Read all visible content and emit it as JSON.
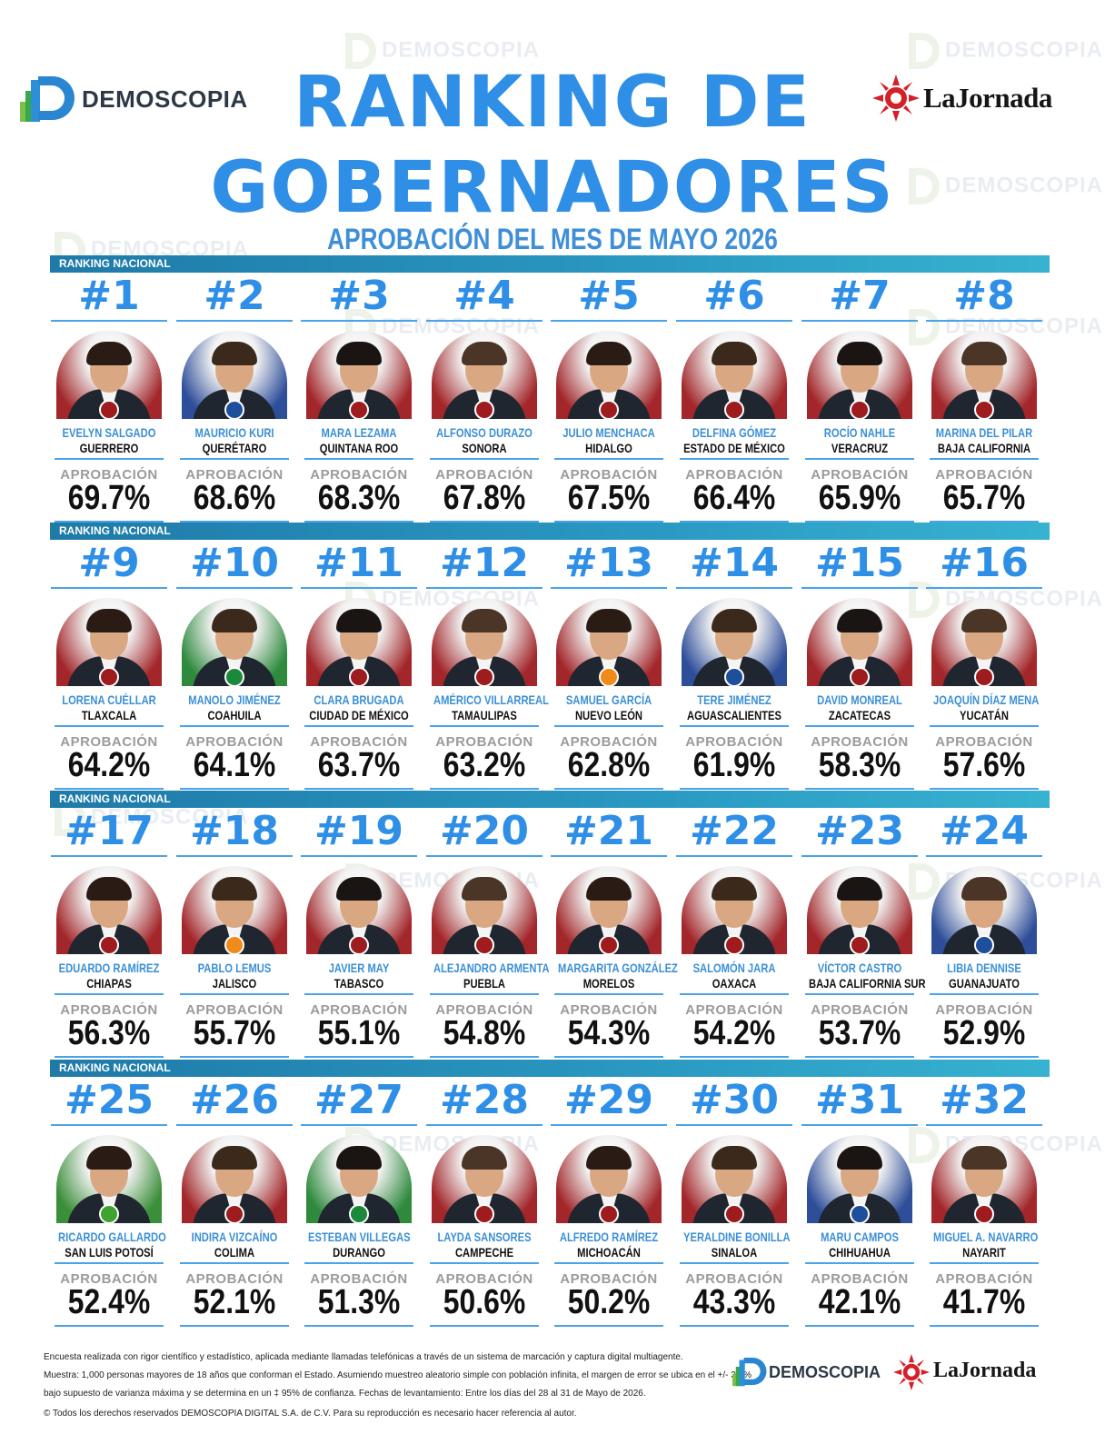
{
  "header": {
    "title_line1": "RANKING DE",
    "title_line2": "GOBERNADORES",
    "subtitle": "APROBACIÓN DEL MES DE MAYO 2026",
    "brand_left": "DEMOSCOPIA",
    "brand_right": "LaJornada"
  },
  "section_label": "RANKING NACIONAL",
  "approval_label": "APROBACIÓN",
  "watermark": "DEMOSCOPIA",
  "governors": [
    {
      "rank": "#1",
      "name": "EVELYN SALGADO",
      "state": "GUERRERO",
      "approval": "69.7%",
      "party": "morena",
      "bg": "#a2262a"
    },
    {
      "rank": "#2",
      "name": "MAURICIO KURI",
      "state": "QUERÉTARO",
      "approval": "68.6%",
      "party": "pan",
      "bg": "#2e4e9a"
    },
    {
      "rank": "#3",
      "name": "MARA LEZAMA",
      "state": "QUINTANA ROO",
      "approval": "68.3%",
      "party": "morena",
      "bg": "#a2262a"
    },
    {
      "rank": "#4",
      "name": "ALFONSO DURAZO",
      "state": "SONORA",
      "approval": "67.8%",
      "party": "morena",
      "bg": "#a2262a"
    },
    {
      "rank": "#5",
      "name": "JULIO MENCHACA",
      "state": "HIDALGO",
      "approval": "67.5%",
      "party": "morena",
      "bg": "#a2262a"
    },
    {
      "rank": "#6",
      "name": "DELFINA GÓMEZ",
      "state": "ESTADO DE MÉXICO",
      "approval": "66.4%",
      "party": "morena",
      "bg": "#a2262a"
    },
    {
      "rank": "#7",
      "name": "ROCÍO NAHLE",
      "state": "VERACRUZ",
      "approval": "65.9%",
      "party": "morena",
      "bg": "#a2262a"
    },
    {
      "rank": "#8",
      "name": "MARINA DEL PILAR",
      "state": "BAJA CALIFORNIA",
      "approval": "65.7%",
      "party": "morena",
      "bg": "#a2262a"
    },
    {
      "rank": "#9",
      "name": "LORENA CUÉLLAR",
      "state": "TLAXCALA",
      "approval": "64.2%",
      "party": "morena",
      "bg": "#a2262a"
    },
    {
      "rank": "#10",
      "name": "MANOLO JIMÉNEZ",
      "state": "COAHUILA",
      "approval": "64.1%",
      "party": "pri",
      "bg": "#2f8a3e"
    },
    {
      "rank": "#11",
      "name": "CLARA BRUGADA",
      "state": "CIUDAD DE MÉXICO",
      "approval": "63.7%",
      "party": "morena",
      "bg": "#a2262a"
    },
    {
      "rank": "#12",
      "name": "AMÉRICO VILLARREAL",
      "state": "TAMAULIPAS",
      "approval": "63.2%",
      "party": "morena",
      "bg": "#a2262a"
    },
    {
      "rank": "#13",
      "name": "SAMUEL GARCÍA",
      "state": "NUEVO LEÓN",
      "approval": "62.8%",
      "party": "mc",
      "bg": "#a2262a"
    },
    {
      "rank": "#14",
      "name": "TERE JIMÉNEZ",
      "state": "AGUASCALIENTES",
      "approval": "61.9%",
      "party": "pan",
      "bg": "#2e4e9a"
    },
    {
      "rank": "#15",
      "name": "DAVID MONREAL",
      "state": "ZACATECAS",
      "approval": "58.3%",
      "party": "morena",
      "bg": "#a2262a"
    },
    {
      "rank": "#16",
      "name": "JOAQUÍN DÍAZ MENA",
      "state": "YUCATÁN",
      "approval": "57.6%",
      "party": "morena",
      "bg": "#a2262a"
    },
    {
      "rank": "#17",
      "name": "EDUARDO RAMÍREZ",
      "state": "CHIAPAS",
      "approval": "56.3%",
      "party": "morena",
      "bg": "#a2262a"
    },
    {
      "rank": "#18",
      "name": "PABLO LEMUS",
      "state": "JALISCO",
      "approval": "55.7%",
      "party": "mc",
      "bg": "#a2262a"
    },
    {
      "rank": "#19",
      "name": "JAVIER MAY",
      "state": "TABASCO",
      "approval": "55.1%",
      "party": "morena",
      "bg": "#a2262a"
    },
    {
      "rank": "#20",
      "name": "ALEJANDRO ARMENTA",
      "state": "PUEBLA",
      "approval": "54.8%",
      "party": "morena",
      "bg": "#a2262a"
    },
    {
      "rank": "#21",
      "name": "MARGARITA GONZÁLEZ",
      "state": "MORELOS",
      "approval": "54.3%",
      "party": "morena",
      "bg": "#a2262a"
    },
    {
      "rank": "#22",
      "name": "SALOMÓN JARA",
      "state": "OAXACA",
      "approval": "54.2%",
      "party": "morena",
      "bg": "#a2262a"
    },
    {
      "rank": "#23",
      "name": "VÍCTOR CASTRO",
      "state": "BAJA CALIFORNIA SUR",
      "approval": "53.7%",
      "party": "morena",
      "bg": "#a2262a"
    },
    {
      "rank": "#24",
      "name": "LIBIA DENNISE",
      "state": "GUANAJUATO",
      "approval": "52.9%",
      "party": "pan",
      "bg": "#2e4e9a"
    },
    {
      "rank": "#25",
      "name": "RICARDO GALLARDO",
      "state": "SAN LUIS POTOSÍ",
      "approval": "52.4%",
      "party": "pvem",
      "bg": "#3c8f3a"
    },
    {
      "rank": "#26",
      "name": "INDIRA VIZCAÍNO",
      "state": "COLIMA",
      "approval": "52.1%",
      "party": "morena",
      "bg": "#a2262a"
    },
    {
      "rank": "#27",
      "name": "ESTEBAN VILLEGAS",
      "state": "DURANGO",
      "approval": "51.3%",
      "party": "pri",
      "bg": "#2f8a3e"
    },
    {
      "rank": "#28",
      "name": "LAYDA SANSORES",
      "state": "CAMPECHE",
      "approval": "50.6%",
      "party": "morena",
      "bg": "#a2262a"
    },
    {
      "rank": "#29",
      "name": "ALFREDO RAMÍREZ",
      "state": "MICHOACÁN",
      "approval": "50.2%",
      "party": "morena",
      "bg": "#a2262a"
    },
    {
      "rank": "#30",
      "name": "YERALDINE BONILLA",
      "state": "SINALOA",
      "approval": "43.3%",
      "party": "morena",
      "bg": "#a2262a"
    },
    {
      "rank": "#31",
      "name": "MARU CAMPOS",
      "state": "CHIHUAHUA",
      "approval": "42.1%",
      "party": "pan",
      "bg": "#2e4e9a"
    },
    {
      "rank": "#32",
      "name": "MIGUEL A. NAVARRO",
      "state": "NAYARIT",
      "approval": "41.7%",
      "party": "morena",
      "bg": "#a2262a"
    }
  ],
  "footer": {
    "line1": "Encuesta realizada con rigor científico y estadístico, aplicada mediante llamadas telefónicas a través de un sistema de marcación y captura digital multiagente.",
    "line2": "Muestra: 1,000 personas mayores de 18 años que conforman el Estado. Asumiendo muestreo aleatorio simple con población infinita, el margen de error se ubica en el +/- 3.8%",
    "line3": "bajo supuesto de varianza máxima y se determina en un ‡ 95% de confianza. Fechas de levantamiento: Entre los días del 28 al 31 de Mayo de 2026.",
    "line4": "© Todos los derechos reservados DEMOSCOPIA DIGITAL S.A. de C.V. Para su reproducción es necesario hacer referencia al autor."
  }
}
